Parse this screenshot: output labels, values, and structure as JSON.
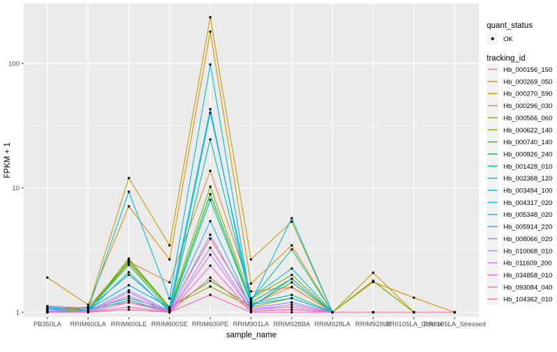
{
  "chart_data": {
    "type": "line",
    "title": "",
    "xlabel": "sample_name",
    "ylabel": "FPKM + 1",
    "y_scale": "log10",
    "ylim": [
      1,
      300
    ],
    "y_ticks": [
      1,
      10,
      100
    ],
    "grid": true,
    "legend_position": "right",
    "categories": [
      "PB350LA",
      "RRIM600LA",
      "RRIM600LE",
      "RRIM600SE",
      "RRIM600PE",
      "RRIM901LA",
      "RRIM928BA",
      "RRIM928LA",
      "RRIM928LE",
      "RRII105LA_Control",
      "RRII105LA_Stressed"
    ],
    "series": [
      {
        "name": "Hb_000156_150",
        "color": "#F8766D",
        "values": [
          1.12,
          1.08,
          1.2,
          1.05,
          3.9,
          1.15,
          1.6,
          1.0,
          1.0,
          1.0,
          1.0
        ]
      },
      {
        "name": "Hb_000269_050",
        "color": "#EA8331",
        "values": [
          1.05,
          1.1,
          2.55,
          1.74,
          13.7,
          1.47,
          1.59,
          1.0,
          1.0,
          1.0,
          1.0
        ]
      },
      {
        "name": "Hb_000270_590",
        "color": "#D89000",
        "values": [
          1.9,
          1.15,
          7.1,
          2.66,
          180,
          1.7,
          3.45,
          1.0,
          1.75,
          1.31,
          1.0
        ]
      },
      {
        "name": "Hb_000296_030",
        "color": "#C09B00",
        "values": [
          1.0,
          1.1,
          12.0,
          3.45,
          235,
          2.66,
          5.35,
          1.0,
          2.08,
          1.0,
          1.0
        ]
      },
      {
        "name": "Hb_000566_060",
        "color": "#A3A500",
        "values": [
          1.05,
          1.05,
          2.5,
          1.1,
          1.61,
          1.1,
          1.3,
          1.0,
          1.79,
          1.0,
          1.0
        ]
      },
      {
        "name": "Hb_000622_140",
        "color": "#7CAE00",
        "values": [
          1.0,
          1.05,
          2.7,
          1.1,
          10.2,
          1.28,
          2.0,
          1.0,
          1.78,
          1.0,
          1.0
        ]
      },
      {
        "name": "Hb_000740_140",
        "color": "#39B600",
        "values": [
          1.0,
          1.02,
          2.6,
          1.08,
          1.79,
          1.12,
          1.74,
          1.0,
          1.0,
          1.0,
          1.0
        ]
      },
      {
        "name": "Hb_000926_240",
        "color": "#00BB4E",
        "values": [
          1.0,
          1.05,
          2.4,
          1.05,
          8.9,
          1.2,
          1.86,
          1.0,
          1.0,
          1.0,
          1.0
        ]
      },
      {
        "name": "Hb_001428_010",
        "color": "#00BF7D",
        "values": [
          1.02,
          1.02,
          2.1,
          1.02,
          8.0,
          1.18,
          1.38,
          1.0,
          1.0,
          1.0,
          1.0
        ]
      },
      {
        "name": "Hb_002368_120",
        "color": "#00C1A3",
        "values": [
          1.0,
          1.05,
          1.3,
          1.05,
          24.5,
          1.25,
          3.2,
          1.0,
          1.0,
          1.0,
          1.0
        ]
      },
      {
        "name": "Hb_003494_100",
        "color": "#00BFC4",
        "values": [
          1.05,
          1.02,
          1.25,
          1.0,
          40,
          1.3,
          2.25,
          1.0,
          1.0,
          1.0,
          1.0
        ]
      },
      {
        "name": "Hb_004317_020",
        "color": "#00BAE0",
        "values": [
          1.0,
          1.05,
          9.3,
          1.29,
          98,
          1.2,
          5.7,
          1.0,
          1.0,
          1.0,
          1.0
        ]
      },
      {
        "name": "Hb_005348_020",
        "color": "#00B0F6",
        "values": [
          1.08,
          1.05,
          1.65,
          1.1,
          43,
          1.15,
          1.3,
          1.0,
          1.0,
          1.0,
          1.0
        ]
      },
      {
        "name": "Hb_005914_220",
        "color": "#35A2FF",
        "values": [
          1.1,
          1.08,
          2.0,
          1.05,
          5.4,
          1.1,
          1.86,
          1.0,
          1.0,
          1.0,
          1.0
        ]
      },
      {
        "name": "Hb_008066_020",
        "color": "#9590FF",
        "values": [
          1.05,
          1.02,
          1.5,
          1.02,
          4.2,
          1.08,
          1.2,
          1.0,
          1.0,
          1.0,
          1.0
        ]
      },
      {
        "name": "Hb_010068_010",
        "color": "#C77CFF",
        "values": [
          1.02,
          1.0,
          1.45,
          1.0,
          3.3,
          1.05,
          1.15,
          1.0,
          1.0,
          1.0,
          1.0
        ]
      },
      {
        "name": "Hb_011609_200",
        "color": "#E76BF3",
        "values": [
          1.0,
          1.02,
          1.35,
          1.0,
          2.9,
          1.05,
          1.1,
          1.0,
          1.0,
          1.0,
          1.0
        ]
      },
      {
        "name": "Hb_034858_010",
        "color": "#FA62DB",
        "values": [
          1.0,
          1.0,
          1.2,
          1.0,
          2.37,
          1.02,
          1.05,
          1.0,
          1.0,
          1.0,
          1.0
        ]
      },
      {
        "name": "Hb_093084_040",
        "color": "#FF62BC",
        "values": [
          1.0,
          1.0,
          1.05,
          1.0,
          1.38,
          1.0,
          1.0,
          1.0,
          1.0,
          1.0,
          1.0
        ]
      },
      {
        "name": "Hb_104362_010",
        "color": "#FF6A98",
        "values": [
          1.0,
          1.0,
          1.1,
          1.0,
          1.9,
          1.02,
          1.05,
          1.0,
          1.0,
          1.0,
          1.0
        ]
      }
    ]
  },
  "legend": {
    "quant_status": {
      "title": "quant_status",
      "items": [
        {
          "label": "OK",
          "symbol": "point",
          "color": "#000000"
        }
      ]
    },
    "tracking_id": {
      "title": "tracking_id"
    }
  },
  "colors": {
    "panel_background": "#EBEBEB",
    "gridline": "#FFFFFF",
    "axis_text": "#4D4D4D",
    "axis_title": "#000000",
    "tick_mark": "#333333",
    "point": "#000000",
    "legend_key_background": "#F2F2F2",
    "figure_background": "#FFFFFF"
  }
}
